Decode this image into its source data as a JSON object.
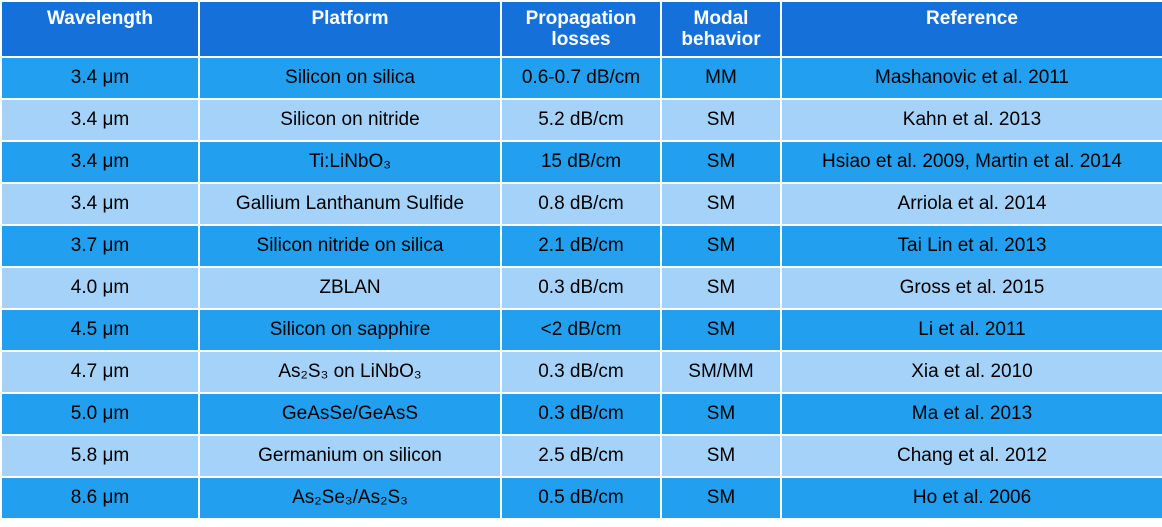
{
  "table": {
    "header": [
      "Wavelength",
      "Platform",
      "Propagation losses",
      "Modal behavior",
      "Reference"
    ],
    "rows": [
      [
        "3.4 μm",
        "Silicon on silica",
        "0.6-0.7 dB/cm",
        "MM",
        "Mashanovic et al. 2011"
      ],
      [
        "3.4 μm",
        "Silicon on nitride",
        "5.2 dB/cm",
        "SM",
        "Kahn et al. 2013"
      ],
      [
        "3.4 μm",
        "Ti:LiNbO₃",
        "15 dB/cm",
        "SM",
        "Hsiao et al. 2009, Martin et al. 2014"
      ],
      [
        "3.4 μm",
        "Gallium Lanthanum Sulfide",
        "0.8 dB/cm",
        "SM",
        "Arriola et al. 2014"
      ],
      [
        "3.7 μm",
        "Silicon nitride on silica",
        "2.1 dB/cm",
        "SM",
        "Tai Lin et al. 2013"
      ],
      [
        "4.0 μm",
        "ZBLAN",
        "0.3 dB/cm",
        "SM",
        "Gross et al. 2015"
      ],
      [
        "4.5 μm",
        "Silicon on sapphire",
        "<2 dB/cm",
        "SM",
        "Li et al. 2011"
      ],
      [
        "4.7 μm",
        "As₂S₃ on LiNbO₃",
        "0.3 dB/cm",
        "SM/MM",
        "Xia et al. 2010"
      ],
      [
        "5.0 μm",
        "GeAsSe/GeAsS",
        "0.3 dB/cm",
        "SM",
        "Ma et al. 2013"
      ],
      [
        "5.8 μm",
        "Germanium on silicon",
        "2.5 dB/cm",
        "SM",
        "Chang et al. 2012"
      ],
      [
        "8.6 μm",
        "As₂Se₃/As₂S₃",
        "0.5 dB/cm",
        "SM",
        "Ho et al. 2006"
      ]
    ]
  }
}
